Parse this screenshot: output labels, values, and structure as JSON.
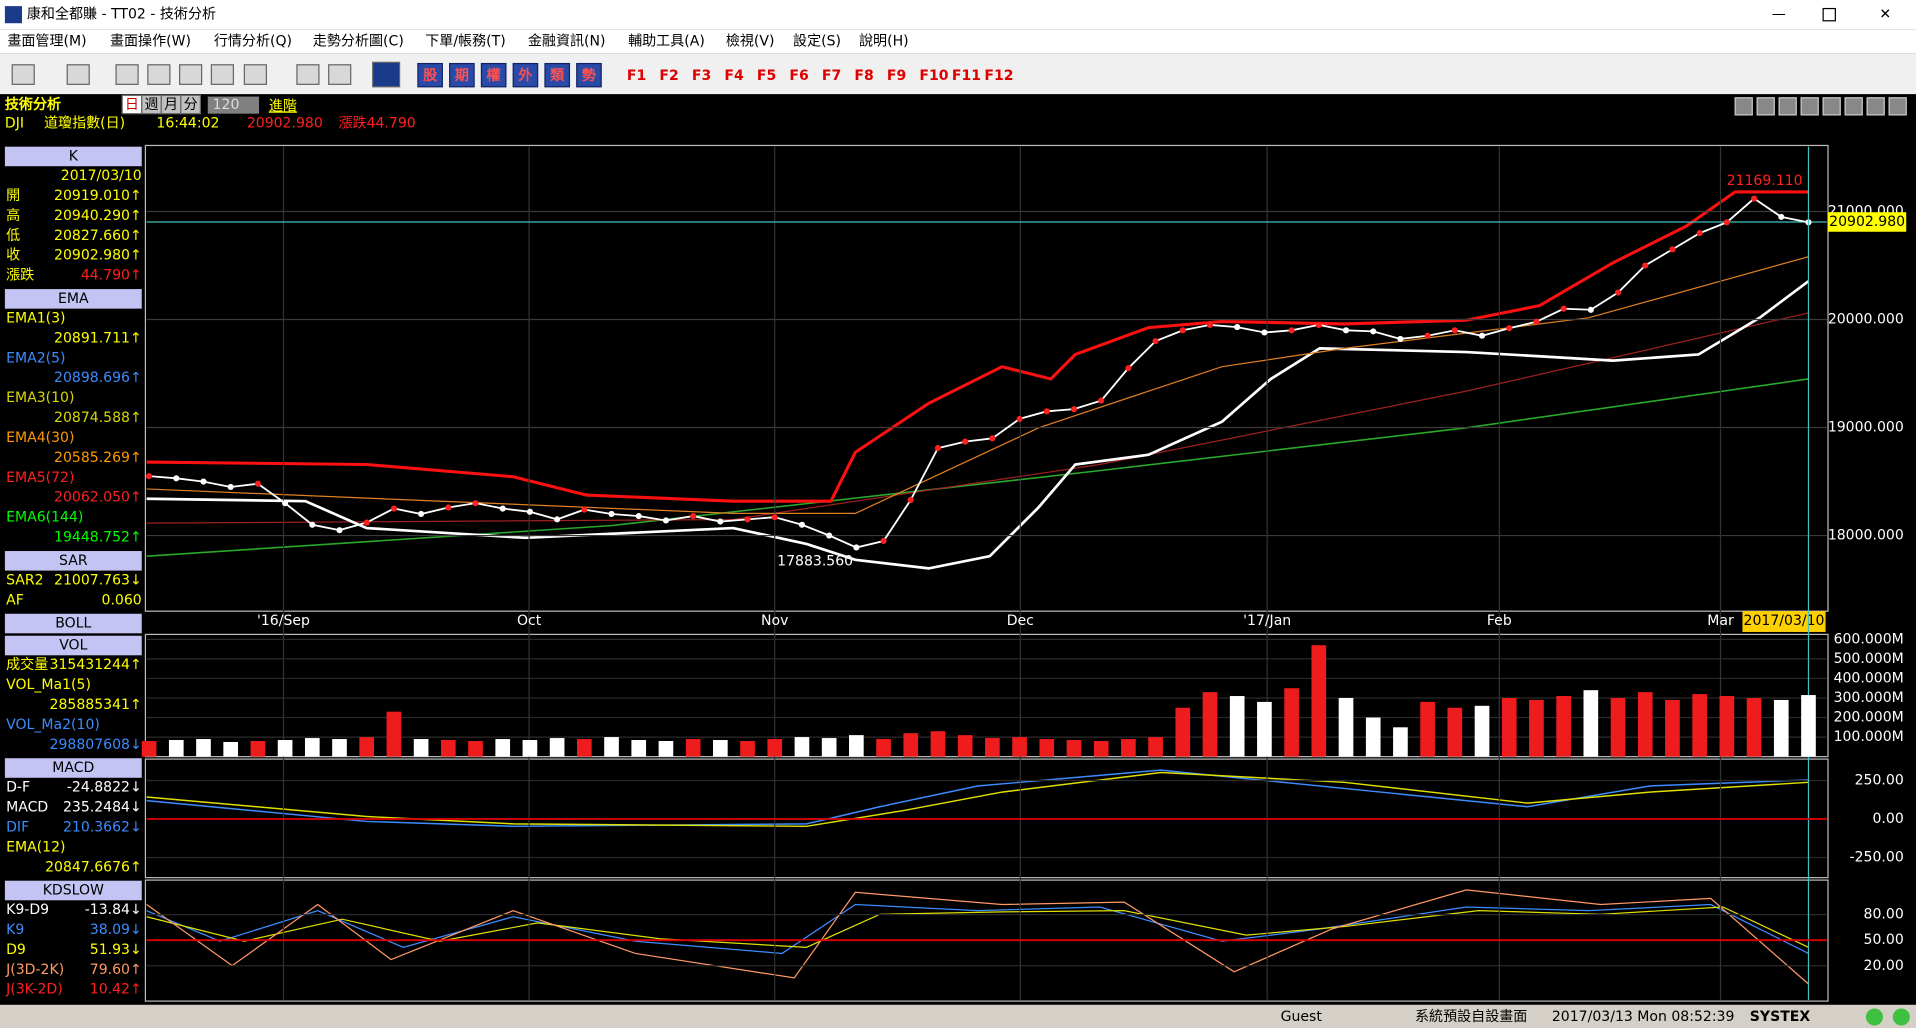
{
  "window": {
    "title": "康和全都賺 - TT02 - 技術分析"
  },
  "menu": [
    "畫面管理(M)",
    "畫面操作(W)",
    "行情分析(Q)",
    "走勢分析圖(C)",
    "下單/帳務(T)",
    "金融資訊(N)",
    "輔助工具(A)",
    "檢視(V)",
    "設定(S)",
    "說明(H)"
  ],
  "toolbar": {
    "quotes": [
      "股",
      "期",
      "權",
      "外",
      "類",
      "勢"
    ],
    "fkeys": [
      "F1",
      "F2",
      "F3",
      "F4",
      "F5",
      "F6",
      "F7",
      "F8",
      "F9",
      "F10",
      "F11",
      "F12"
    ]
  },
  "header": {
    "title": "技術分析",
    "periods": [
      "日",
      "週",
      "月",
      "分"
    ],
    "count": "120",
    "advanced": "進階",
    "symbol": "DJI",
    "name": "道瓊指數(日)",
    "time": "16:44:02",
    "price": "20902.980",
    "change": "漲跌44.790"
  },
  "side_panel": [
    {
      "title": "K",
      "rows": [
        {
          "value": "2017/03/10",
          "color": "#ffff00"
        },
        {
          "label": "開",
          "value": "20919.010↑",
          "color": "#ffff00"
        },
        {
          "label": "高",
          "value": "20940.290↑",
          "color": "#ffff00"
        },
        {
          "label": "低",
          "value": "20827.660↑",
          "color": "#ffff00"
        },
        {
          "label": "收",
          "value": "20902.980↑",
          "color": "#ffff00"
        },
        {
          "label": "漲跌",
          "value": "44.790↑",
          "color": "#ffff00",
          "value_color": "#ff2020"
        }
      ]
    },
    {
      "title": "EMA",
      "rows": [
        {
          "label": "EMA1(3)",
          "color": "#ffff00"
        },
        {
          "value": "20891.711↑",
          "color": "#ffff00"
        },
        {
          "label": "EMA2(5)",
          "color": "#3c8cff"
        },
        {
          "value": "20898.696↑",
          "color": "#3c8cff"
        },
        {
          "label": "EMA3(10)",
          "color": "#d8d800"
        },
        {
          "value": "20874.588↑",
          "color": "#d8d800"
        },
        {
          "label": "EMA4(30)",
          "color": "#ff9900"
        },
        {
          "value": "20585.269↑",
          "color": "#ff9900"
        },
        {
          "label": "EMA5(72)",
          "color": "#ff2020"
        },
        {
          "value": "20062.050↑",
          "color": "#ff2020"
        },
        {
          "label": "EMA6(144)",
          "color": "#00ff00"
        },
        {
          "value": "19448.752↑",
          "color": "#00ff00"
        }
      ]
    },
    {
      "title": "SAR",
      "rows": [
        {
          "label": "SAR2",
          "value": "21007.763↓",
          "color": "#ffff00"
        },
        {
          "label": "AF",
          "value": "0.060",
          "color": "#ffff00"
        }
      ]
    },
    {
      "title": "BOLL",
      "rows": []
    },
    {
      "title": "VOL",
      "rows": [
        {
          "label": "成交量",
          "value": "315431244↑",
          "color": "#ffff00"
        },
        {
          "label": "VOL_Ma1(5)",
          "color": "#ffff00"
        },
        {
          "value": "285885341↑",
          "color": "#ffff00"
        },
        {
          "label": "VOL_Ma2(10)",
          "color": "#3c8cff"
        },
        {
          "value": "298807608↓",
          "color": "#3c8cff"
        }
      ]
    },
    {
      "title": "MACD",
      "rows": [
        {
          "label": "D-F",
          "value": "-24.8822↓",
          "color": "#ffffff"
        },
        {
          "label": "MACD",
          "value": "235.2484↓",
          "color": "#ffffff"
        },
        {
          "label": "DIF",
          "value": "210.3662↓",
          "color": "#3c8cff"
        },
        {
          "label": "EMA(12)",
          "color": "#ffff00"
        },
        {
          "value": "20847.6676↑",
          "color": "#ffff00"
        }
      ]
    },
    {
      "title": "KDSLOW",
      "rows": [
        {
          "label": "K9-D9",
          "value": "-13.84↓",
          "color": "#ffffff"
        },
        {
          "label": "K9",
          "value": "38.09↓",
          "color": "#3c8cff"
        },
        {
          "label": "D9",
          "value": "51.93↓",
          "color": "#ffff00"
        },
        {
          "label": "J(3D-2K)",
          "value": "79.60↑",
          "color": "#ff9966"
        },
        {
          "label": "J(3K-2D)",
          "value": "10.42↑",
          "color": "#ff2020"
        }
      ]
    }
  ],
  "chart_data": [
    {
      "type": "line",
      "color": "#ffffff",
      "values": [
        18550,
        18530,
        18500,
        18450,
        18480,
        18300,
        18100,
        18050,
        18120,
        18250,
        18200,
        18260,
        18300,
        18250,
        18220,
        18150,
        18240,
        18200,
        18180,
        18140,
        18180,
        18130,
        18150,
        18170,
        18100,
        18000,
        17890,
        17950,
        18330,
        18810,
        18870,
        18900,
        19080,
        19150,
        19170,
        19250,
        19550,
        19800,
        19900,
        19950,
        19930,
        19880,
        19900,
        19950,
        19900,
        19890,
        19820,
        19850,
        19900,
        19850,
        19920,
        19980,
        20100,
        20090,
        20250,
        20500,
        20650,
        20800,
        20900,
        21120,
        20950,
        20900
      ],
      "x_labels": [
        "'16/Sep",
        "Oct",
        "Nov",
        "Dec",
        "'17/Jan",
        "Feb",
        "Mar"
      ],
      "cursor_date": "2017/03/10",
      "ylim": [
        17300,
        21600
      ],
      "yticks": [
        {
          "value": 18000,
          "label": "18000.000"
        },
        {
          "value": 19000,
          "label": "19000.000"
        },
        {
          "value": 20000,
          "label": "20000.000"
        },
        {
          "value": 21000,
          "label": "21000.000"
        }
      ],
      "last_price": {
        "value": 20902.98,
        "label": "20902.980"
      },
      "annotations": [
        {
          "value": 21169.11,
          "label": "21169.110"
        },
        {
          "value": 17883.56,
          "label": "17883.560"
        }
      ]
    },
    {
      "type": "bar",
      "values": [
        80,
        85,
        90,
        75,
        80,
        85,
        95,
        90,
        100,
        230,
        90,
        85,
        80,
        90,
        85,
        95,
        90,
        100,
        85,
        80,
        90,
        85,
        80,
        90,
        100,
        95,
        110,
        90,
        120,
        130,
        110,
        95,
        100,
        90,
        85,
        80,
        90,
        100,
        250,
        330,
        310,
        280,
        350,
        570,
        300,
        200,
        150,
        280,
        250,
        260,
        300,
        290,
        310,
        340,
        300,
        330,
        290,
        320,
        310,
        300,
        290,
        315
      ],
      "ylim": [
        0,
        619
      ],
      "yticks": [
        {
          "value": 100,
          "label": "100.000M"
        },
        {
          "value": 200,
          "label": "200.000M"
        },
        {
          "value": 300,
          "label": "300.000M"
        },
        {
          "value": 400,
          "label": "400.000M"
        },
        {
          "value": 500,
          "label": "500.000M"
        },
        {
          "value": 600,
          "label": "600.000M"
        }
      ]
    },
    {
      "type": "line",
      "ylim": [
        -373,
        381
      ],
      "yticks": [
        {
          "value": -250,
          "label": "-250.00"
        },
        {
          "value": 0,
          "label": "0.00"
        },
        {
          "value": 250,
          "label": "250.00"
        }
      ]
    },
    {
      "type": "line",
      "ylim": [
        -20,
        119
      ],
      "yticks": [
        {
          "value": 20,
          "label": "20.00"
        },
        {
          "value": 50,
          "label": "50.00"
        },
        {
          "value": 80,
          "label": "80.00"
        }
      ]
    }
  ],
  "status_bar": {
    "user": "Guest",
    "layout": "系統預設自設畫面",
    "datetime": "2017/03/13 Mon 08:52:39",
    "brand": "SYSTEX"
  }
}
